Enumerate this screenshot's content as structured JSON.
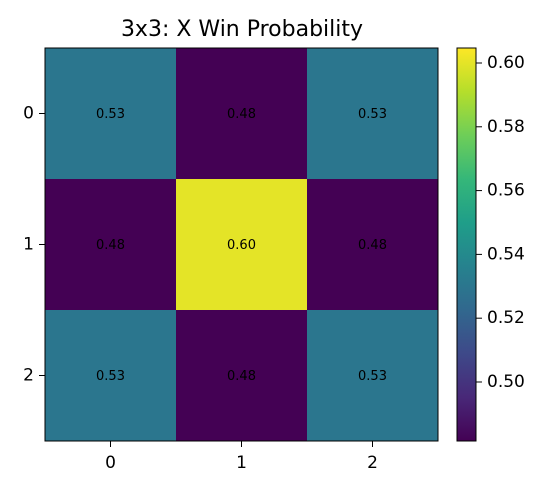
{
  "chart_data": {
    "type": "heatmap",
    "title": "3x3: X Win Probability",
    "xlabel": "",
    "ylabel": "",
    "x_ticks": [
      "0",
      "1",
      "2"
    ],
    "y_ticks": [
      "0",
      "1",
      "2"
    ],
    "values": [
      [
        0.53,
        0.48,
        0.53
      ],
      [
        0.48,
        0.6,
        0.48
      ],
      [
        0.53,
        0.48,
        0.53
      ]
    ],
    "cell_labels": [
      [
        "0.53",
        "0.48",
        "0.53"
      ],
      [
        "0.48",
        "0.60",
        "0.48"
      ],
      [
        "0.53",
        "0.48",
        "0.53"
      ]
    ],
    "colormap": "viridis",
    "color_range": [
      0.4815,
      0.6047
    ],
    "colorbar_ticks": [
      "0.50",
      "0.52",
      "0.54",
      "0.56",
      "0.58",
      "0.60"
    ],
    "colorbar_tick_values": [
      0.5,
      0.52,
      0.54,
      0.56,
      0.58,
      0.6
    ],
    "colors": {
      "viridis_stops": [
        "#440154",
        "#482878",
        "#3e4989",
        "#31688e",
        "#26828e",
        "#1f9e89",
        "#35b779",
        "#6ece58",
        "#b5de2b",
        "#fde725"
      ]
    }
  }
}
